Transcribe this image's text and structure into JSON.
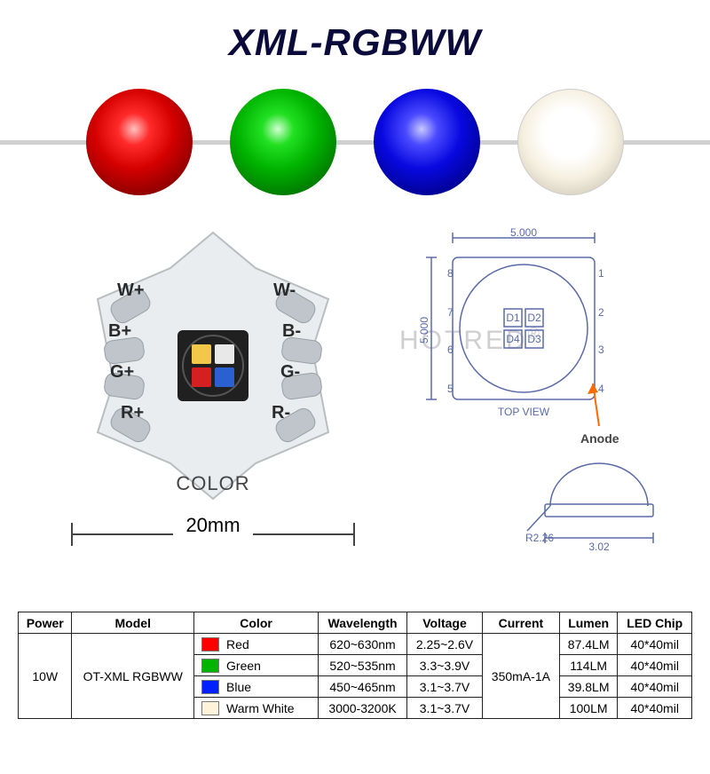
{
  "title": "XML-RGBWW",
  "spheres": {
    "colors": [
      "red",
      "green",
      "blue",
      "white"
    ]
  },
  "pcb": {
    "pad_labels_left": [
      "W+",
      "B+",
      "G+",
      "R+"
    ],
    "pad_labels_right": [
      "W-",
      "B-",
      "G-",
      "R-"
    ],
    "bottom_text": "COLOR",
    "diameter_label": "20mm",
    "star_fill": "#e9edf0",
    "star_stroke": "#b8bdc2",
    "pad_color": "#bfc5ca",
    "chip_body": "#2a2a2a",
    "chip_quads": [
      {
        "fill": "#f2c84a"
      },
      {
        "fill": "#e8e8e8"
      },
      {
        "fill": "#d42020"
      },
      {
        "fill": "#2a60d0"
      }
    ]
  },
  "tech_drawing": {
    "line_color": "#5a6aa8",
    "top_width": "5.000",
    "left_height": "5.000",
    "top_view_label": "TOP VIEW",
    "anode_label": "Anode",
    "anode_arrow_color": "#ff6a00",
    "die_labels": [
      "D1",
      "D2",
      "D4",
      "D3"
    ],
    "side_pins": [
      "8",
      "1",
      "7",
      "2",
      "6",
      "3",
      "5",
      "4"
    ],
    "side_view": {
      "radius_label": "R2.26",
      "base_label": "3.02"
    }
  },
  "watermark": "HOTRED",
  "table": {
    "columns": [
      "Power",
      "Model",
      "Color",
      "Wavelength",
      "Voltage",
      "Current",
      "Lumen",
      "LED Chip"
    ],
    "power": "10W",
    "model": "OT-XML RGBWW",
    "current": "350mA-1A",
    "rows": [
      {
        "color_name": "Red",
        "swatch": "#ff0000",
        "wavelength": "620~630nm",
        "voltage": "2.25~2.6V",
        "lumen": "87.4LM",
        "chip": "40*40mil"
      },
      {
        "color_name": "Green",
        "swatch": "#00b400",
        "wavelength": "520~535nm",
        "voltage": "3.3~3.9V",
        "lumen": "114LM",
        "chip": "40*40mil"
      },
      {
        "color_name": "Blue",
        "swatch": "#0020ff",
        "wavelength": "450~465nm",
        "voltage": "3.1~3.7V",
        "lumen": "39.8LM",
        "chip": "40*40mil"
      },
      {
        "color_name": "Warm White",
        "swatch": "#fff4da",
        "wavelength": "3000-3200K",
        "voltage": "3.1~3.7V",
        "lumen": "100LM",
        "chip": "40*40mil"
      }
    ]
  }
}
